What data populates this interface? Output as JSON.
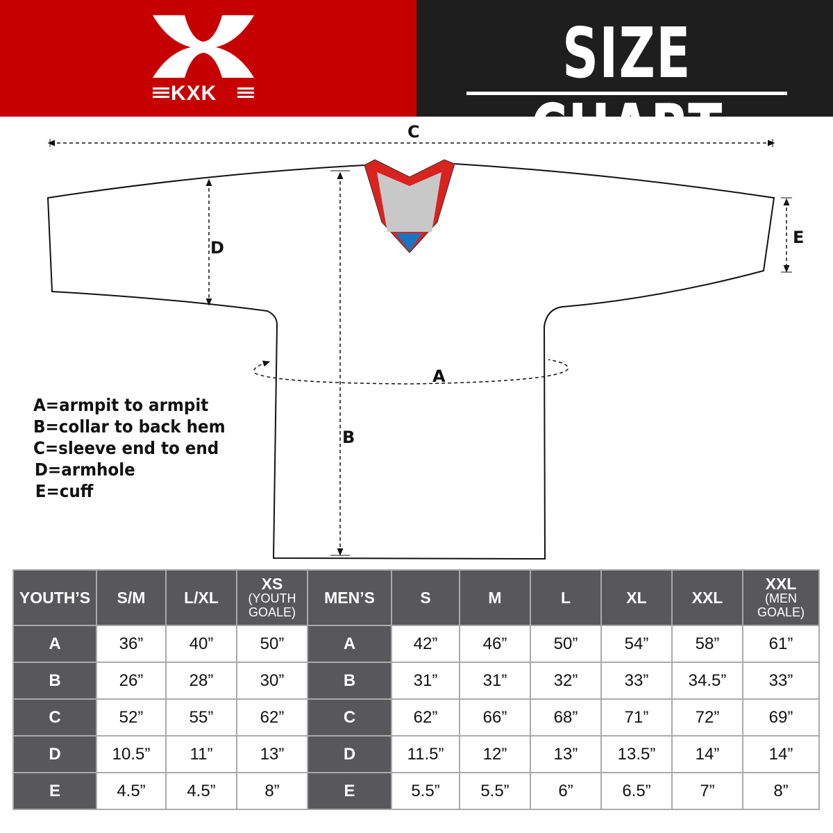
{
  "brand": {
    "logo_text": "KXK",
    "color_red": "#c60000",
    "color_dark": "#1e1e1e"
  },
  "title": "SIZE CHART",
  "diagram": {
    "labels": {
      "a": "A",
      "b": "B",
      "c": "C",
      "d": "D",
      "e": "E"
    }
  },
  "legend": [
    "A=armpit to armpit",
    "B=collar to back hem",
    "C=sleeve end to end",
    "D=armhole",
    "E=cuff"
  ],
  "table": {
    "youth": {
      "header": "YOUTH’S",
      "columns": [
        {
          "label": "S/M"
        },
        {
          "label": "L/XL"
        },
        {
          "label": "XS",
          "sub": "(YOUTH GOALE)"
        }
      ]
    },
    "men": {
      "header": "MEN’S",
      "columns": [
        {
          "label": "S"
        },
        {
          "label": "M"
        },
        {
          "label": "L"
        },
        {
          "label": "XL"
        },
        {
          "label": "XXL"
        },
        {
          "label": "XXL",
          "sub": "(MEN GOALE)"
        }
      ]
    },
    "rows": [
      {
        "key": "A",
        "youth": [
          "36”",
          "40”",
          "50”"
        ],
        "men": [
          "42”",
          "46”",
          "50”",
          "54”",
          "58”",
          "61”"
        ]
      },
      {
        "key": "B",
        "youth": [
          "26”",
          "28”",
          "30”"
        ],
        "men": [
          "31”",
          "31”",
          "32”",
          "33”",
          "34.5”",
          "33”"
        ]
      },
      {
        "key": "C",
        "youth": [
          "52”",
          "55”",
          "62”"
        ],
        "men": [
          "62”",
          "66”",
          "68”",
          "71”",
          "72”",
          "69”"
        ]
      },
      {
        "key": "D",
        "youth": [
          "10.5”",
          "11”",
          "13”"
        ],
        "men": [
          "11.5”",
          "12”",
          "13”",
          "13.5”",
          "14”",
          "14”"
        ]
      },
      {
        "key": "E",
        "youth": [
          "4.5”",
          "4.5”",
          "8”"
        ],
        "men": [
          "5.5”",
          "5.5”",
          "6”",
          "6.5”",
          "7”",
          "8”"
        ]
      }
    ]
  }
}
